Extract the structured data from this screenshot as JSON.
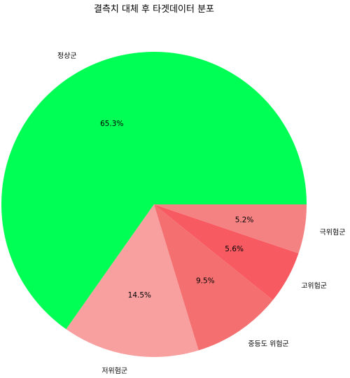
{
  "chart_data": {
    "type": "pie",
    "title": "결측치 대체 후 타겟데이터 분포",
    "categories": [
      "정상군",
      "저위험군",
      "중등도 위험군",
      "고위험군",
      "극위험군"
    ],
    "values": [
      65.3,
      14.5,
      9.5,
      5.6,
      5.2
    ],
    "value_labels": [
      "65.3%",
      "14.5%",
      "9.5%",
      "5.6%",
      "5.2%"
    ],
    "colors": [
      "#00ff55",
      "#f8a0a0",
      "#f47070",
      "#f85a62",
      "#f48282"
    ],
    "start_angle_deg": 0,
    "direction": "counterclockwise"
  }
}
